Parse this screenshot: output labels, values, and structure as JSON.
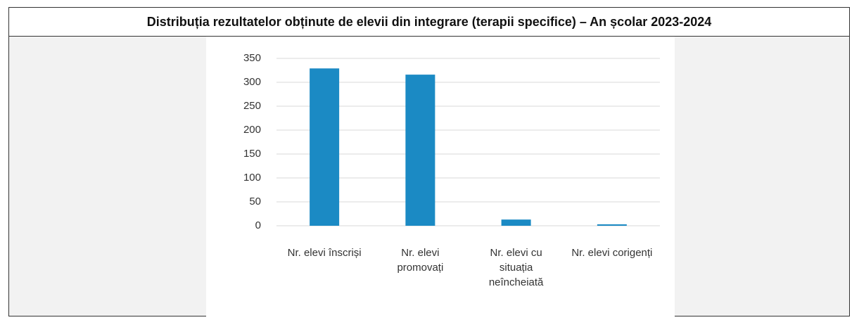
{
  "chart_data": {
    "type": "bar",
    "title": "Distribuția rezultatelor obținute de elevii din integrare (terapii specifice) – An școlar 2023-2024",
    "categories": [
      "Nr. elevi înscriși",
      "Nr. elevi promovați",
      "Nr. elevi cu situația neîncheiată",
      "Nr. elevi corigenți"
    ],
    "values": [
      329,
      316,
      13,
      3
    ],
    "color": "#1b8ac4",
    "ylim": [
      0,
      350
    ],
    "yticks": [
      0,
      50,
      100,
      150,
      200,
      250,
      300,
      350
    ],
    "grid": true
  }
}
